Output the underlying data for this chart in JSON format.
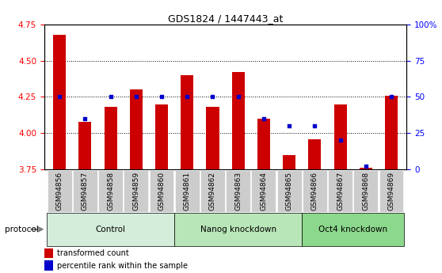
{
  "title": "GDS1824 / 1447443_at",
  "samples": [
    "GSM94856",
    "GSM94857",
    "GSM94858",
    "GSM94859",
    "GSM94860",
    "GSM94861",
    "GSM94862",
    "GSM94863",
    "GSM94864",
    "GSM94865",
    "GSM94866",
    "GSM94867",
    "GSM94868",
    "GSM94869"
  ],
  "transformed_count": [
    4.68,
    4.08,
    4.18,
    4.3,
    4.2,
    4.4,
    4.18,
    4.42,
    4.1,
    3.85,
    3.96,
    4.2,
    3.76,
    4.26
  ],
  "percentile_rank": [
    50,
    35,
    50,
    50,
    50,
    50,
    50,
    50,
    35,
    30,
    30,
    20,
    2,
    50
  ],
  "bar_color": "#cc0000",
  "square_color": "#0000cc",
  "ylim_left": [
    3.75,
    4.75
  ],
  "ylim_right": [
    0,
    100
  ],
  "yticks_left": [
    3.75,
    4.0,
    4.25,
    4.5,
    4.75
  ],
  "yticks_right": [
    0,
    25,
    50,
    75,
    100
  ],
  "groups": [
    {
      "label": "Control",
      "start": 0,
      "end": 5
    },
    {
      "label": "Nanog knockdown",
      "start": 5,
      "end": 10
    },
    {
      "label": "Oct4 knockdown",
      "start": 10,
      "end": 14
    }
  ],
  "group_colors": [
    "#d4edda",
    "#b8e6b8",
    "#8cd88c"
  ],
  "bar_bottom": 3.75,
  "legend_items": [
    "transformed count",
    "percentile rank within the sample"
  ],
  "protocol_label": "protocol"
}
